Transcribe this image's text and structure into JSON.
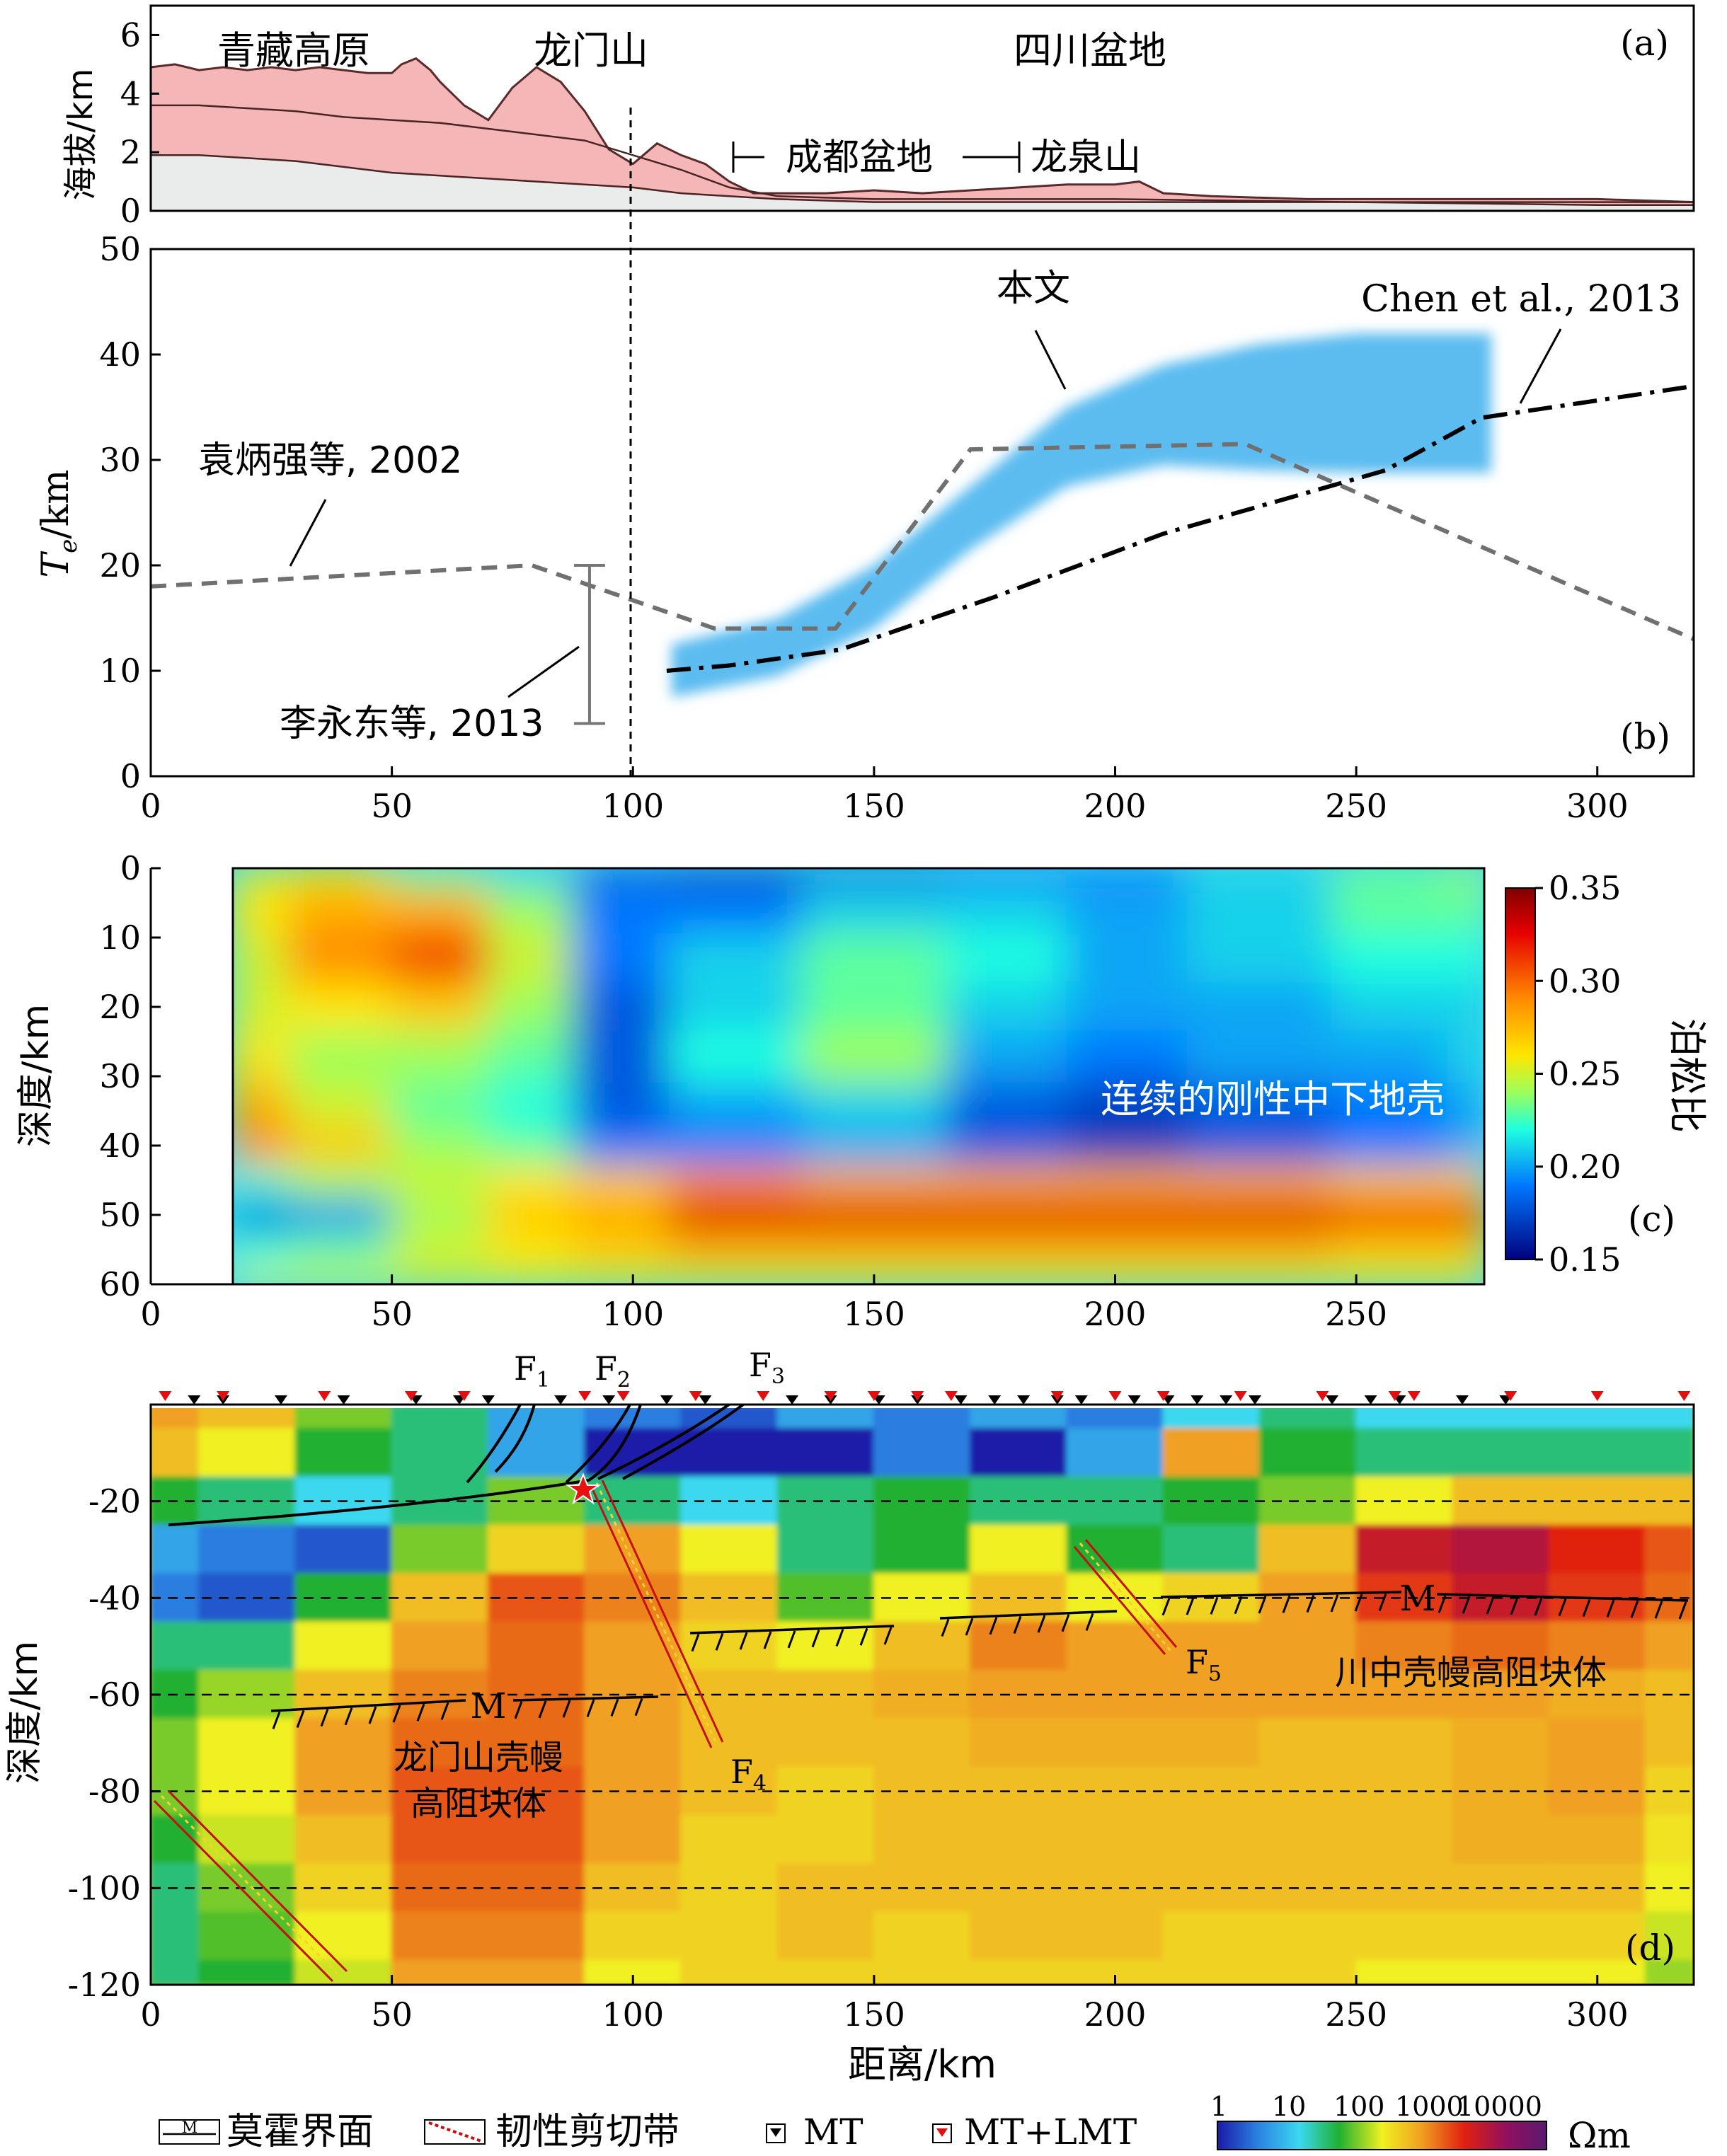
{
  "panels": {
    "a": {
      "tag": "(a)",
      "ylabel": "海拔/km",
      "yticks": [
        "0",
        "2",
        "4",
        "6"
      ],
      "regions": [
        "青藏高原",
        "龙门山",
        "四川盆地"
      ],
      "sub_regions": [
        "成都盆地",
        "龙泉山"
      ]
    },
    "b": {
      "tag": "(b)",
      "ylabel_main": "T",
      "ylabel_sub": "e",
      "ylabel_unit": "/km",
      "yticks": [
        "0",
        "10",
        "20",
        "30",
        "40",
        "50"
      ],
      "xticks": [
        "0",
        "50",
        "100",
        "150",
        "200",
        "250",
        "300"
      ],
      "annotations": [
        "袁炳强等, 2002",
        "李永东等, 2013",
        "本文",
        "Chen et al., 2013"
      ]
    },
    "c": {
      "tag": "(c)",
      "ylabel": "深度/km",
      "yticks": [
        "0",
        "10",
        "20",
        "30",
        "40",
        "50",
        "60"
      ],
      "xticks": [
        "0",
        "50",
        "100",
        "150",
        "200",
        "250"
      ],
      "annotation": "连续的刚性中下地壳",
      "colorbar_label": "泊松比",
      "colorbar_ticks": [
        "0.35",
        "0.30",
        "0.25",
        "0.20",
        "0.15"
      ]
    },
    "d": {
      "tag": "(d)",
      "ylabel": "深度/km",
      "xlabel": "距离/km",
      "yticks": [
        "-20",
        "-40",
        "-60",
        "-80",
        "-100",
        "-120"
      ],
      "xticks": [
        "0",
        "50",
        "100",
        "150",
        "200",
        "250",
        "300"
      ],
      "faults": [
        "F1",
        "F2",
        "F3",
        "F4",
        "F5"
      ],
      "moho_label": "M",
      "block_labels": [
        "龙门山壳幔",
        "高阻块体",
        "川中壳幔高阻块体"
      ],
      "legend": {
        "moho_icon": "M",
        "moho": "莫霍界面",
        "shear": "韧性剪切带",
        "mt": "MT",
        "mt_lmt": "MT+LMT",
        "scale_ticks": [
          "1",
          "10",
          "100",
          "1000",
          "10000"
        ],
        "scale_unit": "Ωm"
      }
    }
  },
  "chart_data": [
    {
      "type": "area",
      "panel": "a",
      "xlim": [
        0,
        320
      ],
      "ylim": [
        0,
        7
      ],
      "xlabel": "",
      "ylabel": "海拔/km",
      "series": [
        {
          "x": [
            0,
            5,
            10,
            15,
            20,
            25,
            30,
            35,
            40,
            45,
            50,
            52,
            55,
            58,
            60,
            65,
            70,
            75,
            80,
            85,
            90,
            95,
            100,
            105,
            110,
            115,
            120,
            125,
            130,
            140,
            150,
            160,
            170,
            180,
            190,
            200,
            205,
            210,
            220,
            240,
            260,
            280,
            300,
            320
          ],
          "values": [
            4.9,
            5.0,
            4.8,
            4.9,
            4.8,
            4.9,
            4.8,
            4.9,
            4.8,
            4.7,
            4.7,
            5.0,
            5.2,
            4.8,
            4.4,
            3.6,
            3.1,
            4.2,
            4.9,
            4.4,
            3.4,
            2.1,
            1.6,
            2.3,
            1.9,
            1.6,
            1.0,
            0.6,
            0.6,
            0.6,
            0.7,
            0.6,
            0.7,
            0.8,
            0.9,
            0.9,
            1.0,
            0.6,
            0.5,
            0.4,
            0.4,
            0.4,
            0.4,
            0.3
          ]
        },
        {
          "x": [
            0,
            10,
            20,
            30,
            40,
            50,
            60,
            70,
            80,
            90,
            100,
            110,
            120,
            130,
            150,
            200,
            250,
            300,
            320
          ],
          "values": [
            3.6,
            3.6,
            3.5,
            3.4,
            3.2,
            3.1,
            3.0,
            2.8,
            2.6,
            2.4,
            1.9,
            1.4,
            0.8,
            0.5,
            0.4,
            0.4,
            0.3,
            0.3,
            0.3
          ]
        },
        {
          "x": [
            0,
            10,
            20,
            30,
            40,
            50,
            60,
            70,
            80,
            90,
            100,
            110,
            120,
            130,
            150,
            200,
            250,
            300,
            320
          ],
          "values": [
            1.9,
            1.9,
            1.8,
            1.7,
            1.5,
            1.3,
            1.2,
            1.1,
            1.0,
            0.9,
            0.8,
            0.6,
            0.5,
            0.4,
            0.3,
            0.3,
            0.3,
            0.2,
            0.2
          ]
        }
      ]
    },
    {
      "type": "line",
      "panel": "b",
      "xlim": [
        0,
        320
      ],
      "ylim": [
        0,
        50
      ],
      "ylabel": "Te/km",
      "series": [
        {
          "x": [
            0,
            79,
            117,
            142,
            170,
            227,
            320
          ],
          "values": [
            18,
            20,
            14,
            14,
            31,
            31.5,
            13
          ]
        },
        {
          "x": [
            107,
            120,
            143,
            175,
            210,
            256,
            276,
            320
          ],
          "values": [
            10,
            10.5,
            12,
            17,
            23,
            29,
            34,
            37
          ]
        },
        {
          "x": [
            91
          ],
          "low": [
            5
          ],
          "high": [
            20
          ]
        },
        {
          "x": [
            108,
            130,
            150,
            170,
            190,
            210,
            230,
            250,
            270,
            278
          ],
          "low": [
            7.5,
            9.5,
            14,
            21.5,
            27.5,
            29.5,
            29,
            28.8,
            28.8,
            28.8
          ],
          "high": [
            12.5,
            15,
            20,
            27.5,
            35,
            39,
            41,
            42,
            42,
            42
          ]
        }
      ]
    },
    {
      "type": "heatmap",
      "panel": "c",
      "xlim": [
        0,
        280
      ],
      "ylim": [
        60,
        0
      ],
      "value_range": [
        0.15,
        0.35
      ],
      "colorbar_label": "泊松比",
      "x": [
        17,
        40,
        60,
        80,
        95,
        120,
        150,
        180,
        200,
        230,
        260,
        277
      ],
      "y": [
        0,
        6,
        13,
        20,
        27,
        35,
        40,
        46,
        50,
        55,
        60
      ],
      "values": [
        [
          0.25,
          0.26,
          0.23,
          0.21,
          0.18,
          0.17,
          0.18,
          0.19,
          0.19,
          0.21,
          0.23,
          0.24
        ],
        [
          0.26,
          0.28,
          0.28,
          0.24,
          0.19,
          0.19,
          0.21,
          0.21,
          0.2,
          0.21,
          0.23,
          0.23
        ],
        [
          0.25,
          0.29,
          0.31,
          0.25,
          0.19,
          0.21,
          0.23,
          0.22,
          0.2,
          0.21,
          0.22,
          0.22
        ],
        [
          0.25,
          0.26,
          0.27,
          0.24,
          0.18,
          0.21,
          0.23,
          0.21,
          0.2,
          0.2,
          0.21,
          0.21
        ],
        [
          0.26,
          0.24,
          0.24,
          0.23,
          0.18,
          0.22,
          0.24,
          0.2,
          0.19,
          0.2,
          0.2,
          0.21
        ],
        [
          0.28,
          0.25,
          0.23,
          0.22,
          0.18,
          0.2,
          0.21,
          0.18,
          0.17,
          0.18,
          0.19,
          0.2
        ],
        [
          0.29,
          0.27,
          0.24,
          0.23,
          0.19,
          0.19,
          0.2,
          0.18,
          0.17,
          0.18,
          0.19,
          0.2
        ],
        [
          0.22,
          0.24,
          0.25,
          0.26,
          0.27,
          0.29,
          0.28,
          0.28,
          0.28,
          0.28,
          0.27,
          0.27
        ],
        [
          0.18,
          0.19,
          0.24,
          0.27,
          0.28,
          0.33,
          0.33,
          0.33,
          0.33,
          0.33,
          0.32,
          0.32
        ],
        [
          0.22,
          0.23,
          0.25,
          0.26,
          0.27,
          0.28,
          0.28,
          0.28,
          0.28,
          0.28,
          0.27,
          0.27
        ],
        [
          0.25,
          0.25,
          0.25,
          0.25,
          0.25,
          0.25,
          0.25,
          0.25,
          0.25,
          0.25,
          0.25,
          0.25
        ]
      ]
    },
    {
      "type": "heatmap",
      "panel": "d",
      "xlim": [
        0,
        320
      ],
      "ylim": [
        -120,
        0
      ],
      "xlabel": "距离/km",
      "ylabel": "深度/km",
      "value_range": [
        1,
        10000
      ],
      "scale": "log",
      "unit": "Ωm",
      "grid": "dashed at -20, -40, -60, -80, -100",
      "x": [
        0,
        20,
        40,
        60,
        80,
        100,
        120,
        140,
        160,
        180,
        200,
        220,
        240,
        260,
        280,
        300,
        320
      ],
      "y": [
        0,
        -10,
        -20,
        -30,
        -40,
        -50,
        -60,
        -70,
        -80,
        -90,
        -100,
        -110,
        -120
      ],
      "values": [
        [
          300,
          200,
          50,
          20,
          5,
          3,
          2,
          5,
          3,
          5,
          3,
          10,
          20,
          10,
          10,
          10,
          10
        ],
        [
          200,
          100,
          30,
          20,
          5,
          1,
          1,
          1,
          3,
          1,
          5,
          300,
          30,
          20,
          20,
          20,
          20
        ],
        [
          30,
          20,
          10,
          20,
          50,
          20,
          10,
          20,
          30,
          20,
          20,
          30,
          50,
          100,
          200,
          200,
          200
        ],
        [
          5,
          3,
          2,
          50,
          150,
          300,
          100,
          20,
          30,
          100,
          30,
          20,
          200,
          1500,
          2000,
          1000,
          600
        ],
        [
          3,
          2,
          30,
          200,
          600,
          400,
          200,
          40,
          100,
          200,
          100,
          150,
          300,
          800,
          1500,
          800,
          500
        ],
        [
          20,
          20,
          100,
          300,
          500,
          300,
          150,
          100,
          200,
          400,
          300,
          300,
          300,
          400,
          500,
          400,
          300
        ],
        [
          30,
          60,
          200,
          400,
          500,
          300,
          200,
          200,
          250,
          300,
          300,
          300,
          300,
          300,
          300,
          250,
          200
        ],
        [
          50,
          100,
          300,
          500,
          500,
          300,
          200,
          200,
          200,
          250,
          250,
          250,
          200,
          200,
          250,
          300,
          200
        ],
        [
          50,
          100,
          300,
          600,
          600,
          300,
          200,
          150,
          200,
          200,
          200,
          200,
          200,
          200,
          250,
          300,
          150
        ],
        [
          30,
          80,
          200,
          600,
          600,
          300,
          150,
          150,
          200,
          200,
          200,
          200,
          200,
          200,
          250,
          250,
          120
        ],
        [
          20,
          50,
          150,
          500,
          500,
          200,
          150,
          200,
          200,
          200,
          200,
          200,
          200,
          200,
          200,
          200,
          100
        ],
        [
          20,
          40,
          100,
          400,
          400,
          150,
          150,
          200,
          150,
          200,
          200,
          150,
          150,
          150,
          150,
          150,
          80
        ],
        [
          20,
          30,
          80,
          300,
          300,
          100,
          150,
          150,
          150,
          150,
          150,
          150,
          150,
          100,
          100,
          100,
          60
        ]
      ],
      "stations": {
        "mt": [
          9,
          15,
          27,
          40,
          55,
          64,
          70,
          85,
          95,
          107,
          115,
          133,
          141,
          151,
          159,
          168,
          175,
          181,
          188,
          193,
          204,
          211,
          217,
          223,
          229,
          245,
          253,
          259,
          272,
          281
        ],
        "mt_lmt": [
          3,
          15,
          36,
          54,
          65,
          90,
          98,
          113,
          127,
          141,
          150,
          159,
          166,
          188,
          200,
          210,
          226,
          243,
          258,
          262,
          282,
          300,
          318
        ]
      }
    }
  ]
}
